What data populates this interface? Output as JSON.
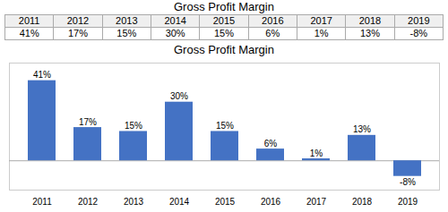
{
  "chart_data": {
    "type": "bar",
    "title": "Gross Profit Margin",
    "categories": [
      "2011",
      "2012",
      "2013",
      "2014",
      "2015",
      "2016",
      "2017",
      "2018",
      "2019"
    ],
    "values": [
      41,
      17,
      15,
      30,
      15,
      6,
      1,
      13,
      -8
    ],
    "value_labels": [
      "41%",
      "17%",
      "15%",
      "30%",
      "15%",
      "6%",
      "1%",
      "13%",
      "-8%"
    ],
    "data_labels": true,
    "color": "#4472C4",
    "ylim": [
      -15,
      50
    ],
    "tick_labels": "x"
  }
}
